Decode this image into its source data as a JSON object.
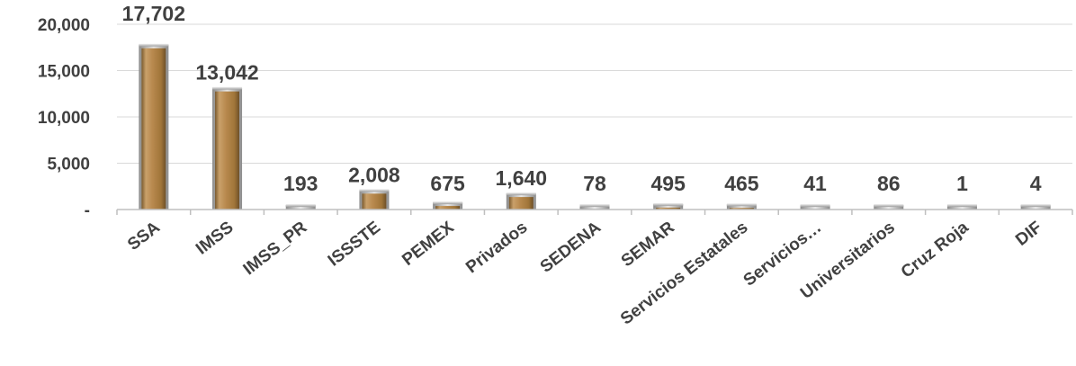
{
  "chart_data": {
    "type": "bar",
    "categories": [
      "SSA",
      "IMSS",
      "IMSS_PR",
      "ISSSTE",
      "PEMEX",
      "Privados",
      "SEDENA",
      "SEMAR",
      "Servicios Estatales",
      "Servicios…",
      "Universitarios",
      "Cruz Roja",
      "DIF"
    ],
    "values": [
      17702,
      13042,
      193,
      2008,
      675,
      1640,
      78,
      495,
      465,
      41,
      86,
      1,
      4
    ],
    "data_labels": [
      "17,702",
      "13,042",
      "193",
      "2,008",
      "675",
      "1,640",
      "78",
      "495",
      "465",
      "41",
      "86",
      "1",
      "4"
    ],
    "title": "",
    "xlabel": "",
    "ylabel": "",
    "ylim": [
      0,
      20000
    ],
    "yticks": [
      0,
      5000,
      10000,
      15000,
      20000
    ],
    "ytick_labels": [
      "-",
      "5,000",
      "10,000",
      "15,000",
      "20,000"
    ],
    "grid": true,
    "legend": "none",
    "colors": {
      "bar_fill": "#b8894e",
      "bar_edge": "#9a9a9a",
      "axis": "#bfbfbf",
      "grid": "#d9d9d9",
      "text": "#404040"
    }
  }
}
